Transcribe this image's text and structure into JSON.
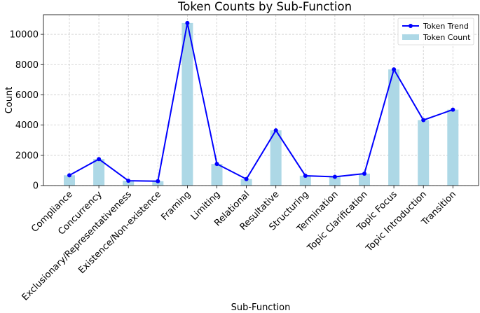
{
  "chart_data": {
    "type": "bar",
    "title": "Token Counts by Sub-Function",
    "xlabel": "Sub-Function",
    "ylabel": "Count",
    "ylim": [
      0,
      11300
    ],
    "yticks": [
      "0",
      "2000",
      "4000",
      "6000",
      "8000",
      "10000"
    ],
    "grid": true,
    "legend_position": "top-right",
    "categories": [
      "Compliance",
      "Concurrency",
      "Exclusionary/Representativeness",
      "Existence/Non-existence",
      "Framing",
      "Limiting",
      "Relational",
      "Resultative",
      "Structuring",
      "Termination",
      "Topic Clarification",
      "Topic Focus",
      "Topic Introduction",
      "Transition"
    ],
    "series": [
      {
        "name": "Token Count",
        "type": "bar",
        "color": "#add8e6",
        "values": [
          680,
          1750,
          320,
          290,
          10750,
          1430,
          430,
          3650,
          650,
          580,
          790,
          7680,
          4330,
          5020
        ]
      },
      {
        "name": "Token Trend",
        "type": "line",
        "color": "#0000ff",
        "values": [
          680,
          1750,
          320,
          290,
          10750,
          1430,
          430,
          3650,
          650,
          580,
          790,
          7680,
          4330,
          5020
        ]
      }
    ]
  }
}
